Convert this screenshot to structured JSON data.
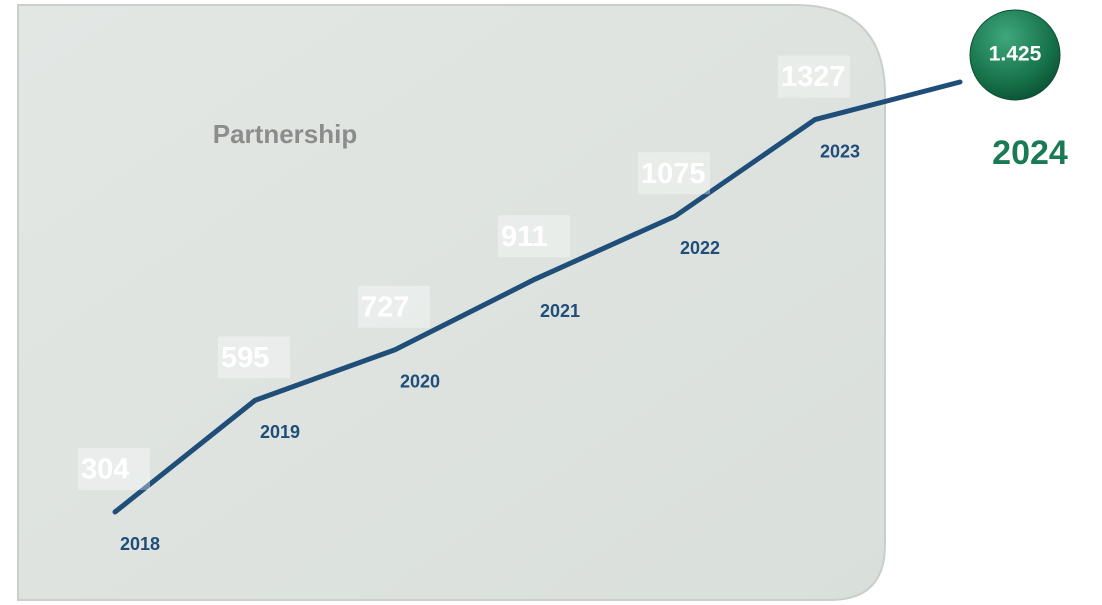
{
  "chart_data": {
    "type": "line",
    "title": "Partnership",
    "categories": [
      "2018",
      "2019",
      "2020",
      "2021",
      "2022",
      "2023",
      "2024"
    ],
    "values": [
      304,
      595,
      727,
      911,
      1075,
      1327,
      1425
    ],
    "value_labels": [
      "304",
      "595",
      "727",
      "911",
      "1075",
      "1327",
      "1.425"
    ],
    "color": "#1f4e79",
    "highlight_color": "#1a7a55"
  }
}
